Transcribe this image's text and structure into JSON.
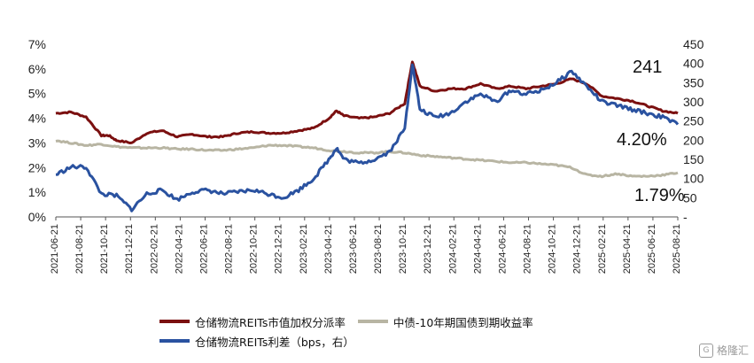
{
  "chart_data": {
    "type": "line",
    "y_left": {
      "ticks": [
        "7%",
        "6%",
        "5%",
        "4%",
        "3%",
        "2%",
        "1%",
        "0%"
      ],
      "range": [
        0,
        7
      ],
      "unit": "%"
    },
    "y_right": {
      "ticks": [
        "450",
        "400",
        "350",
        "300",
        "250",
        "200",
        "150",
        "100",
        "50",
        "-"
      ],
      "range": [
        0,
        450
      ],
      "unit": "bps"
    },
    "x_ticks": [
      "2021-06-21",
      "2021-08-21",
      "2021-10-21",
      "2021-12-21",
      "2022-02-21",
      "2022-04-21",
      "2022-06-21",
      "2022-08-21",
      "2022-10-21",
      "2022-12-21",
      "2023-02-21",
      "2023-04-21",
      "2023-06-21",
      "2023-08-21",
      "2023-10-21",
      "2023-12-21",
      "2024-02-21",
      "2024-04-21",
      "2024-06-21",
      "2024-08-21",
      "2024-10-21",
      "2024-12-21",
      "2025-02-21",
      "2025-04-21",
      "2025-06-21",
      "2025-08-21"
    ],
    "annotations": {
      "spread_last": "241",
      "dist_last": "4.20%",
      "bond_last": "1.79%"
    },
    "grid": false,
    "legend_position": "bottom",
    "series": [
      {
        "name": "仓储物流REITs市值加权分派率",
        "axis": "left",
        "color": "#7b1010",
        "points": [
          [
            0,
            4.2
          ],
          [
            1,
            4.25
          ],
          [
            2,
            4.05
          ],
          [
            3,
            3.3
          ],
          [
            3.5,
            3.3
          ],
          [
            4,
            3.1
          ],
          [
            5,
            3.0
          ],
          [
            6,
            3.4
          ],
          [
            7,
            3.5
          ],
          [
            8,
            3.25
          ],
          [
            9,
            3.35
          ],
          [
            10,
            3.25
          ],
          [
            11,
            3.25
          ],
          [
            12,
            3.4
          ],
          [
            13,
            3.45
          ],
          [
            14,
            3.4
          ],
          [
            15,
            3.4
          ],
          [
            16,
            3.5
          ],
          [
            17,
            3.6
          ],
          [
            18,
            4.0
          ],
          [
            18.5,
            4.3
          ],
          [
            19,
            4.1
          ],
          [
            20,
            4.0
          ],
          [
            21,
            4.05
          ],
          [
            22,
            4.2
          ],
          [
            23,
            4.6
          ],
          [
            23.5,
            6.3
          ],
          [
            24,
            5.3
          ],
          [
            25,
            5.1
          ],
          [
            26,
            5.2
          ],
          [
            27,
            5.2
          ],
          [
            28,
            5.4
          ],
          [
            29,
            5.2
          ],
          [
            30,
            5.3
          ],
          [
            31,
            5.2
          ],
          [
            32,
            5.3
          ],
          [
            33,
            5.4
          ],
          [
            34,
            5.6
          ],
          [
            35,
            5.4
          ],
          [
            36,
            4.9
          ],
          [
            37,
            4.8
          ],
          [
            38,
            4.7
          ],
          [
            39,
            4.5
          ],
          [
            40,
            4.3
          ],
          [
            41,
            4.2
          ]
        ]
      },
      {
        "name": "中债-10年期国债到期收益率",
        "axis": "left",
        "color": "#b8b5a3",
        "points": [
          [
            0,
            3.1
          ],
          [
            1,
            3.0
          ],
          [
            2,
            2.9
          ],
          [
            3,
            2.95
          ],
          [
            4,
            2.85
          ],
          [
            5,
            2.8
          ],
          [
            6,
            2.8
          ],
          [
            7,
            2.8
          ],
          [
            8,
            2.75
          ],
          [
            9,
            2.75
          ],
          [
            10,
            2.7
          ],
          [
            11,
            2.7
          ],
          [
            12,
            2.75
          ],
          [
            13,
            2.8
          ],
          [
            14,
            2.9
          ],
          [
            15,
            2.9
          ],
          [
            16,
            2.85
          ],
          [
            17,
            2.8
          ],
          [
            18,
            2.7
          ],
          [
            19,
            2.65
          ],
          [
            20,
            2.6
          ],
          [
            21,
            2.6
          ],
          [
            22,
            2.65
          ],
          [
            23,
            2.6
          ],
          [
            24,
            2.5
          ],
          [
            25,
            2.45
          ],
          [
            26,
            2.4
          ],
          [
            27,
            2.35
          ],
          [
            28,
            2.3
          ],
          [
            29,
            2.25
          ],
          [
            30,
            2.2
          ],
          [
            31,
            2.2
          ],
          [
            32,
            2.15
          ],
          [
            33,
            2.1
          ],
          [
            34,
            2.0
          ],
          [
            35,
            1.7
          ],
          [
            36,
            1.65
          ],
          [
            37,
            1.75
          ],
          [
            38,
            1.65
          ],
          [
            39,
            1.65
          ],
          [
            40,
            1.7
          ],
          [
            41,
            1.79
          ]
        ]
      },
      {
        "name": "仓储物流REITs利差（bps，右）",
        "axis": "right",
        "color": "#2a52a0",
        "points": [
          [
            0,
            110
          ],
          [
            1,
            130
          ],
          [
            2,
            130
          ],
          [
            3,
            60
          ],
          [
            4,
            55
          ],
          [
            5,
            20
          ],
          [
            6,
            60
          ],
          [
            7,
            70
          ],
          [
            8,
            45
          ],
          [
            9,
            65
          ],
          [
            10,
            70
          ],
          [
            11,
            60
          ],
          [
            12,
            65
          ],
          [
            13,
            70
          ],
          [
            14,
            60
          ],
          [
            15,
            50
          ],
          [
            16,
            70
          ],
          [
            17,
            100
          ],
          [
            18,
            150
          ],
          [
            18.5,
            180
          ],
          [
            19,
            150
          ],
          [
            20,
            140
          ],
          [
            21,
            150
          ],
          [
            22,
            170
          ],
          [
            23,
            230
          ],
          [
            23.5,
            400
          ],
          [
            24,
            280
          ],
          [
            25,
            260
          ],
          [
            26,
            270
          ],
          [
            27,
            300
          ],
          [
            28,
            320
          ],
          [
            29,
            300
          ],
          [
            30,
            330
          ],
          [
            31,
            320
          ],
          [
            32,
            330
          ],
          [
            33,
            350
          ],
          [
            34,
            380
          ],
          [
            35,
            340
          ],
          [
            36,
            300
          ],
          [
            37,
            290
          ],
          [
            38,
            280
          ],
          [
            39,
            270
          ],
          [
            40,
            260
          ],
          [
            41,
            241
          ]
        ]
      }
    ]
  },
  "legend": {
    "items": [
      "仓储物流REITs市值加权分派率",
      "中债-10年期国债到期收益率",
      "仓储物流REITs利差（bps，右）"
    ]
  },
  "watermark": {
    "logo": "G",
    "text": "格隆汇"
  }
}
